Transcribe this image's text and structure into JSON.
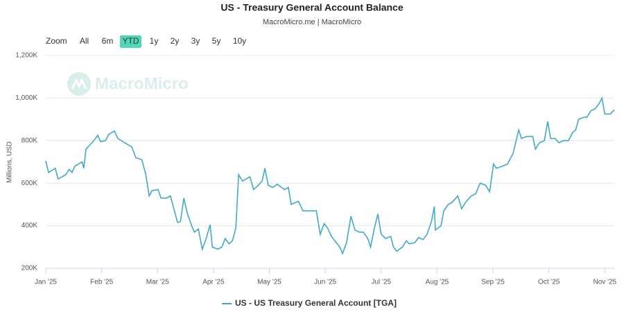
{
  "chart_data": {
    "type": "line",
    "title": "US - Treasury General Account Balance",
    "subtitle": "MacroMicro.me | MacroMicro",
    "watermark": "MacroMicro",
    "y_axis_label": "Millions, USD",
    "range_selector": {
      "label": "Zoom",
      "buttons": [
        "All",
        "6m",
        "YTD",
        "1y",
        "2y",
        "3y",
        "5y",
        "10y"
      ],
      "selected": 2
    },
    "xlim": [
      0,
      10.17
    ],
    "xticks": [
      {
        "value": 0,
        "label": "Jan '25"
      },
      {
        "value": 1,
        "label": "Feb '25"
      },
      {
        "value": 2,
        "label": "Mar '25"
      },
      {
        "value": 3,
        "label": "Apr '25"
      },
      {
        "value": 4,
        "label": "May '25"
      },
      {
        "value": 5,
        "label": "Jun '25"
      },
      {
        "value": 6,
        "label": "Jul '25"
      },
      {
        "value": 7,
        "label": "Aug '25"
      },
      {
        "value": 8,
        "label": "Sep '25"
      },
      {
        "value": 9,
        "label": "Oct '25"
      },
      {
        "value": 10,
        "label": "Nov '25"
      }
    ],
    "ylim": [
      200000,
      1200000
    ],
    "yticks": [
      {
        "value": 200000,
        "label": "200K"
      },
      {
        "value": 400000,
        "label": "400K"
      },
      {
        "value": 600000,
        "label": "600K"
      },
      {
        "value": 800000,
        "label": "800K"
      },
      {
        "value": 1000000,
        "label": "1,000K"
      },
      {
        "value": 1200000,
        "label": "1,200K"
      }
    ],
    "grid": true,
    "series": [
      {
        "name": "US - US Treasury General Account [TGA]",
        "color": "#41a8c9",
        "x": [
          0,
          0.05,
          0.17,
          0.22,
          0.36,
          0.42,
          0.47,
          0.52,
          0.65,
          0.68,
          0.72,
          0.86,
          0.93,
          0.98,
          1.07,
          1.13,
          1.23,
          1.29,
          1.41,
          1.54,
          1.61,
          1.72,
          1.79,
          1.85,
          1.9,
          2.01,
          2.06,
          2.16,
          2.23,
          2.28,
          2.36,
          2.41,
          2.47,
          2.53,
          2.61,
          2.66,
          2.73,
          2.8,
          2.87,
          2.94,
          2.98,
          3.08,
          3.15,
          3.21,
          3.28,
          3.34,
          3.4,
          3.45,
          3.52,
          3.65,
          3.72,
          3.8,
          3.87,
          3.92,
          3.98,
          4.06,
          4.14,
          4.27,
          4.34,
          4.39,
          4.52,
          4.6,
          4.76,
          4.84,
          4.91,
          4.98,
          5.04,
          5.11,
          5.17,
          5.26,
          5.31,
          5.38,
          5.46,
          5.53,
          5.61,
          5.68,
          5.76,
          5.81,
          5.88,
          5.94,
          6.0,
          6.08,
          6.17,
          6.22,
          6.28,
          6.38,
          6.45,
          6.5,
          6.6,
          6.67,
          6.75,
          6.82,
          6.9,
          6.95,
          6.97,
          7.07,
          7.12,
          7.2,
          7.27,
          7.37,
          7.44,
          7.51,
          7.61,
          7.69,
          7.77,
          7.87,
          7.94,
          8.01,
          8.06,
          8.17,
          8.26,
          8.36,
          8.46,
          8.51,
          8.61,
          8.71,
          8.76,
          8.83,
          8.92,
          8.98,
          9.03,
          9.11,
          9.18,
          9.26,
          9.35,
          9.43,
          9.48,
          9.53,
          9.63,
          9.68,
          9.75,
          9.83,
          9.9,
          9.95,
          10.0,
          10.1,
          10.17
        ],
        "values": [
          705000,
          650000,
          670000,
          620000,
          640000,
          665000,
          650000,
          680000,
          700000,
          670000,
          760000,
          800000,
          825000,
          795000,
          800000,
          830000,
          845000,
          810000,
          790000,
          770000,
          720000,
          710000,
          640000,
          540000,
          565000,
          570000,
          530000,
          530000,
          540000,
          490000,
          415000,
          420000,
          530000,
          460000,
          400000,
          370000,
          385000,
          290000,
          340000,
          405000,
          300000,
          290000,
          300000,
          340000,
          315000,
          330000,
          390000,
          640000,
          610000,
          630000,
          570000,
          590000,
          610000,
          670000,
          590000,
          580000,
          595000,
          570000,
          580000,
          500000,
          515000,
          470000,
          470000,
          470000,
          360000,
          410000,
          390000,
          350000,
          330000,
          300000,
          270000,
          320000,
          445000,
          380000,
          370000,
          370000,
          340000,
          300000,
          390000,
          455000,
          360000,
          340000,
          350000,
          300000,
          280000,
          300000,
          330000,
          315000,
          320000,
          345000,
          335000,
          360000,
          420000,
          490000,
          380000,
          400000,
          470000,
          500000,
          510000,
          540000,
          480000,
          510000,
          540000,
          550000,
          600000,
          590000,
          560000,
          690000,
          670000,
          680000,
          690000,
          740000,
          850000,
          810000,
          820000,
          820000,
          760000,
          790000,
          800000,
          890000,
          810000,
          810000,
          790000,
          800000,
          800000,
          840000,
          850000,
          900000,
          910000,
          910000,
          940000,
          950000,
          975000,
          1000000,
          925000,
          925000,
          945000
        ]
      }
    ]
  }
}
